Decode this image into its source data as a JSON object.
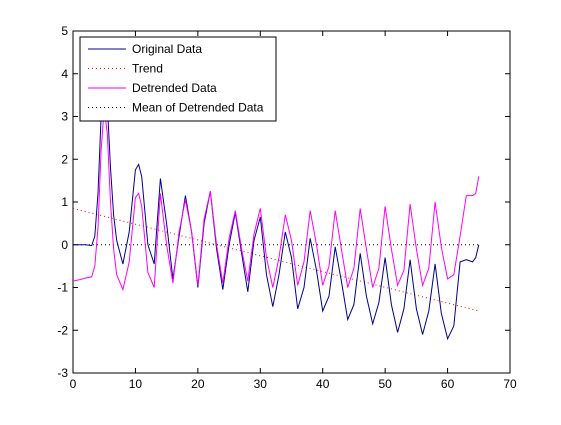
{
  "chart_data": {
    "type": "line",
    "title": "",
    "xlabel": "",
    "ylabel": "",
    "xlim": [
      0,
      70
    ],
    "ylim": [
      -3,
      5
    ],
    "xticks": [
      0,
      10,
      20,
      30,
      40,
      50,
      60,
      70
    ],
    "yticks": [
      -3,
      -2,
      -1,
      0,
      1,
      2,
      3,
      4,
      5
    ],
    "grid": false,
    "legend_position": "top-left",
    "series": [
      {
        "name": "Original Data",
        "style": "solid",
        "color": "#00008b",
        "x": [
          0,
          1,
          2,
          3,
          3.5,
          4,
          4.5,
          5,
          5.5,
          6,
          6.5,
          7,
          8,
          9,
          10,
          10.5,
          11,
          12,
          13,
          14,
          15,
          16,
          17,
          18,
          19,
          20,
          21,
          22,
          23,
          24,
          25,
          26,
          27,
          28,
          29,
          30,
          31,
          32,
          33,
          34,
          35,
          36,
          37,
          38,
          39,
          40,
          41,
          42,
          43,
          44,
          45,
          46,
          47,
          48,
          49,
          50,
          51,
          52,
          53,
          54,
          55,
          56,
          57,
          58,
          59,
          60,
          61,
          62,
          63,
          64,
          64.5,
          65
        ],
        "y": [
          0,
          0,
          0,
          -0.02,
          0.2,
          1.2,
          3.0,
          3.9,
          3.3,
          1.8,
          0.7,
          0.1,
          -0.45,
          0.3,
          1.75,
          1.88,
          1.6,
          0.0,
          -0.45,
          1.55,
          0.5,
          -0.8,
          0.2,
          1.15,
          0.3,
          -1.0,
          0.5,
          1.25,
          -0.1,
          -1.05,
          0.0,
          0.75,
          -0.2,
          -1.1,
          0.1,
          0.65,
          -0.7,
          -1.45,
          -0.7,
          0.3,
          -0.3,
          -1.5,
          -1.0,
          0.15,
          -0.6,
          -1.55,
          -1.2,
          -0.05,
          -0.85,
          -1.75,
          -1.4,
          -0.2,
          -1.2,
          -1.85,
          -1.35,
          -0.3,
          -1.4,
          -2.05,
          -1.5,
          -0.35,
          -1.5,
          -2.1,
          -1.55,
          -0.45,
          -1.6,
          -2.2,
          -1.9,
          -0.4,
          -0.35,
          -0.4,
          -0.3,
          0.0
        ]
      },
      {
        "name": "Trend",
        "style": "dotted",
        "color": "#ff0000",
        "x": [
          0,
          65
        ],
        "y": [
          0.85,
          -1.55
        ]
      },
      {
        "name": "Detrended Data",
        "style": "solid",
        "color": "#ff00ff",
        "x": [
          0,
          1,
          2,
          3,
          3.5,
          4,
          4.5,
          5,
          5.5,
          6,
          6.5,
          7,
          8,
          9,
          10,
          10.5,
          11,
          12,
          13,
          14,
          15,
          16,
          17,
          18,
          19,
          20,
          21,
          22,
          23,
          24,
          25,
          26,
          27,
          28,
          29,
          30,
          31,
          32,
          33,
          34,
          35,
          36,
          37,
          38,
          39,
          40,
          41,
          42,
          43,
          44,
          45,
          46,
          47,
          48,
          49,
          50,
          51,
          52,
          53,
          54,
          55,
          56,
          57,
          58,
          59,
          60,
          61,
          62,
          63,
          64,
          64.5,
          65
        ],
        "y": [
          -0.85,
          -0.82,
          -0.78,
          -0.75,
          -0.5,
          0.4,
          2.2,
          3.2,
          2.6,
          1.0,
          -0.1,
          -0.7,
          -1.05,
          -0.4,
          1.1,
          1.2,
          0.9,
          -0.65,
          -1.0,
          1.2,
          0.0,
          -0.9,
          0.3,
          1.05,
          0.3,
          -0.95,
          0.6,
          1.25,
          0.0,
          -0.9,
          0.15,
          0.8,
          -0.1,
          -0.85,
          0.25,
          0.85,
          -0.3,
          -1.0,
          -0.3,
          0.7,
          0.1,
          -0.95,
          -0.4,
          0.8,
          0.0,
          -0.95,
          -0.5,
          0.8,
          -0.1,
          -1.0,
          -0.55,
          0.85,
          -0.1,
          -1.0,
          -0.55,
          0.9,
          -0.1,
          -0.95,
          -0.6,
          0.95,
          -0.1,
          -0.95,
          -0.55,
          1.0,
          -0.05,
          -0.8,
          -0.7,
          0.2,
          1.15,
          1.15,
          1.2,
          1.6
        ]
      },
      {
        "name": "Mean of Detrended Data",
        "style": "dotted",
        "color": "#000000",
        "x": [
          0,
          65
        ],
        "y": [
          0,
          0
        ]
      }
    ]
  }
}
